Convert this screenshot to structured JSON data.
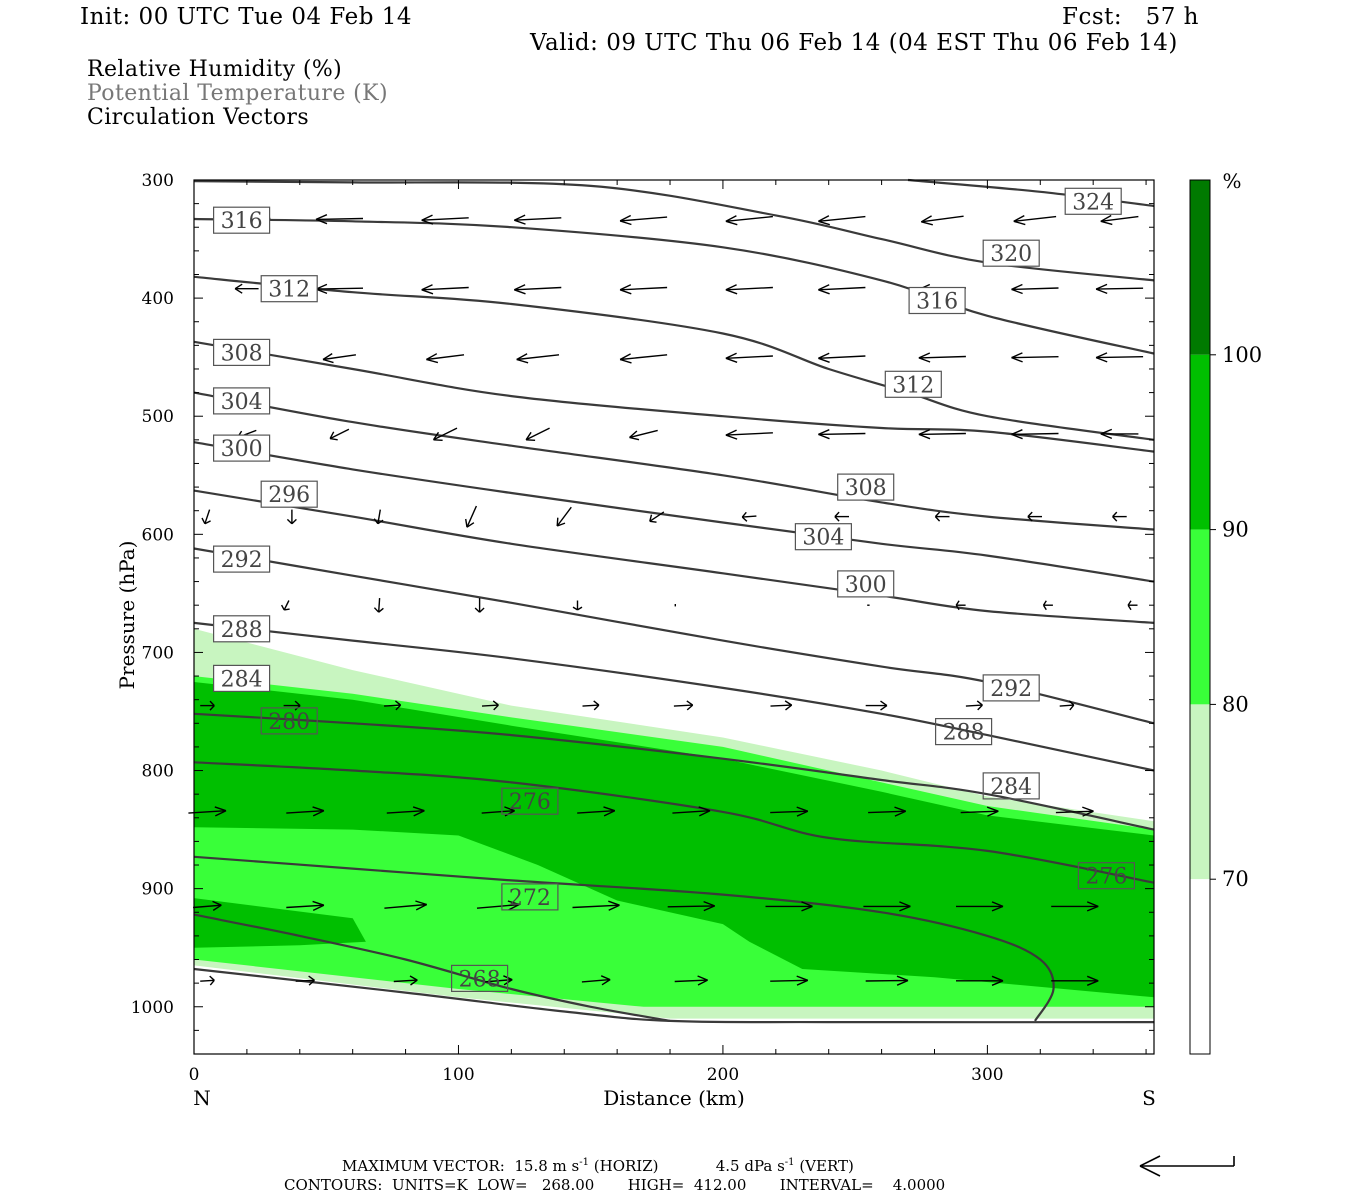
{
  "header": {
    "init": "Init: 00 UTC Tue 04 Feb 14",
    "fcst": "Fcst:   57 h",
    "valid": "Valid: 09 UTC Thu 06 Feb 14 (04 EST Thu 06 Feb 14)"
  },
  "legend": {
    "line1": "Relative Humidity (%)",
    "line2": "Potential Temperature (K)",
    "line3": "Circulation Vectors"
  },
  "footer": {
    "max_vector_label": "MAXIMUM VECTOR:",
    "horiz": "15.8 m s",
    "horiz_unit": "(HORIZ)",
    "vert": "4.5 dPa s",
    "vert_unit": "(VERT)",
    "exp": "-1",
    "contours": "CONTOURS:  UNITS=K  LOW=   268.00       HIGH=  412.00       INTERVAL=    4.0000"
  },
  "colors": {
    "rh70": "#c8f5c0",
    "rh80": "#39ff39",
    "rh90": "#00bf00",
    "rh100": "#007a00",
    "contour": "#3a3a3a",
    "arrow": "#000000"
  },
  "chart_data": {
    "type": "contour",
    "xlabel": "Distance (km)",
    "ylabel": "Pressure (hPa)",
    "xlim": [
      0,
      363
    ],
    "ylim": [
      300,
      1040
    ],
    "x_ticks": [
      "0",
      "100",
      "200",
      "300"
    ],
    "x_tick_values": [
      0,
      100,
      200,
      300
    ],
    "y_ticks": [
      "300",
      "400",
      "500",
      "600",
      "700",
      "800",
      "900",
      "1000"
    ],
    "y_tick_values": [
      300,
      400,
      500,
      600,
      700,
      800,
      900,
      1000
    ],
    "x_end_labels": {
      "left": "N",
      "right": "S"
    },
    "colorbar": {
      "unit": "%",
      "levels": [
        "70",
        "80",
        "90",
        "100"
      ],
      "level_values": [
        70,
        80,
        90,
        100
      ]
    },
    "isentropes": [
      {
        "theta": 268,
        "points": [
          [
            0,
            968
          ],
          [
            80,
            988
          ],
          [
            140,
            1004
          ],
          [
            180,
            1012
          ],
          [
            240,
            1013
          ],
          [
            363,
            1013
          ]
        ]
      },
      {
        "theta": 272,
        "points": [
          [
            0,
            922
          ],
          [
            40,
            940
          ],
          [
            80,
            960
          ],
          [
            120,
            985
          ],
          [
            150,
            1000
          ],
          [
            180,
            1012
          ]
        ]
      },
      {
        "theta": 276,
        "points": [
          [
            0,
            873
          ],
          [
            60,
            883
          ],
          [
            120,
            893
          ],
          [
            200,
            905
          ],
          [
            260,
            920
          ],
          [
            300,
            940
          ],
          [
            320,
            960
          ],
          [
            325,
            985
          ],
          [
            318,
            1012
          ]
        ]
      },
      {
        "theta": 280,
        "points": [
          [
            0,
            793
          ],
          [
            60,
            800
          ],
          [
            120,
            810
          ],
          [
            200,
            835
          ],
          [
            240,
            857
          ],
          [
            300,
            868
          ],
          [
            363,
            895
          ]
        ]
      },
      {
        "theta": 284,
        "points": [
          [
            0,
            752
          ],
          [
            60,
            760
          ],
          [
            120,
            770
          ],
          [
            200,
            790
          ],
          [
            260,
            808
          ],
          [
            300,
            820
          ],
          [
            363,
            850
          ]
        ]
      },
      {
        "theta": 288,
        "points": [
          [
            0,
            675
          ],
          [
            60,
            690
          ],
          [
            120,
            705
          ],
          [
            200,
            730
          ],
          [
            260,
            752
          ],
          [
            300,
            770
          ],
          [
            363,
            800
          ]
        ]
      },
      {
        "theta": 292,
        "points": [
          [
            0,
            612
          ],
          [
            60,
            635
          ],
          [
            120,
            658
          ],
          [
            200,
            690
          ],
          [
            260,
            712
          ],
          [
            300,
            725
          ],
          [
            363,
            760
          ]
        ]
      },
      {
        "theta": 296,
        "points": [
          [
            0,
            563
          ],
          [
            60,
            585
          ],
          [
            120,
            608
          ],
          [
            200,
            633
          ],
          [
            260,
            652
          ],
          [
            300,
            665
          ],
          [
            363,
            675
          ]
        ]
      },
      {
        "theta": 300,
        "points": [
          [
            0,
            522
          ],
          [
            60,
            545
          ],
          [
            120,
            565
          ],
          [
            200,
            590
          ],
          [
            260,
            608
          ],
          [
            300,
            618
          ],
          [
            363,
            640
          ]
        ]
      },
      {
        "theta": 304,
        "points": [
          [
            0,
            480
          ],
          [
            60,
            505
          ],
          [
            120,
            525
          ],
          [
            200,
            550
          ],
          [
            260,
            573
          ],
          [
            300,
            585
          ],
          [
            363,
            596
          ]
        ]
      },
      {
        "theta": 308,
        "points": [
          [
            0,
            437
          ],
          [
            60,
            460
          ],
          [
            120,
            483
          ],
          [
            200,
            500
          ],
          [
            260,
            510
          ],
          [
            300,
            513
          ],
          [
            363,
            530
          ]
        ]
      },
      {
        "theta": 312,
        "points": [
          [
            0,
            382
          ],
          [
            60,
            395
          ],
          [
            120,
            405
          ],
          [
            200,
            430
          ],
          [
            240,
            460
          ],
          [
            270,
            480
          ],
          [
            300,
            500
          ],
          [
            363,
            520
          ]
        ]
      },
      {
        "theta": 316,
        "points": [
          [
            0,
            333
          ],
          [
            60,
            335
          ],
          [
            120,
            340
          ],
          [
            200,
            357
          ],
          [
            260,
            385
          ],
          [
            300,
            415
          ],
          [
            363,
            447
          ]
        ]
      },
      {
        "theta": 320,
        "points": [
          [
            0,
            301
          ],
          [
            60,
            302
          ],
          [
            150,
            305
          ],
          [
            220,
            330
          ],
          [
            260,
            350
          ],
          [
            300,
            370
          ],
          [
            363,
            385
          ]
        ]
      },
      {
        "theta": 324,
        "points": [
          [
            270,
            300
          ],
          [
            320,
            310
          ],
          [
            363,
            322
          ]
        ]
      }
    ],
    "contour_labels": [
      {
        "text": "316",
        "x": 18,
        "p": 334
      },
      {
        "text": "312",
        "x": 36,
        "p": 392
      },
      {
        "text": "308",
        "x": 18,
        "p": 446
      },
      {
        "text": "304",
        "x": 18,
        "p": 487
      },
      {
        "text": "300",
        "x": 18,
        "p": 527
      },
      {
        "text": "296",
        "x": 36,
        "p": 566
      },
      {
        "text": "292",
        "x": 18,
        "p": 621
      },
      {
        "text": "288",
        "x": 18,
        "p": 680
      },
      {
        "text": "284",
        "x": 18,
        "p": 722
      },
      {
        "text": "280",
        "x": 36,
        "p": 758
      },
      {
        "text": "276",
        "x": 127,
        "p": 826
      },
      {
        "text": "272",
        "x": 127,
        "p": 907
      },
      {
        "text": "268",
        "x": 108,
        "p": 976
      },
      {
        "text": "324",
        "x": 340,
        "p": 318
      },
      {
        "text": "320",
        "x": 309,
        "p": 362
      },
      {
        "text": "316",
        "x": 281,
        "p": 402
      },
      {
        "text": "312",
        "x": 272,
        "p": 473
      },
      {
        "text": "308",
        "x": 254,
        "p": 560
      },
      {
        "text": "304",
        "x": 238,
        "p": 602
      },
      {
        "text": "300",
        "x": 254,
        "p": 642
      },
      {
        "text": "292",
        "x": 309,
        "p": 730
      },
      {
        "text": "288",
        "x": 291,
        "p": 767
      },
      {
        "text": "284",
        "x": 309,
        "p": 813
      },
      {
        "text": "276",
        "x": 345,
        "p": 889
      }
    ],
    "rh_fill": {
      "rh70_top": [
        [
          0,
          680
        ],
        [
          60,
          715
        ],
        [
          120,
          745
        ],
        [
          200,
          772
        ],
        [
          260,
          800
        ],
        [
          300,
          822
        ],
        [
          363,
          843
        ]
      ],
      "rh70_bottom": [
        [
          0,
          965
        ],
        [
          100,
          992
        ],
        [
          180,
          1010
        ],
        [
          363,
          1010
        ]
      ],
      "rh80_top": [
        [
          0,
          720
        ],
        [
          60,
          735
        ],
        [
          120,
          755
        ],
        [
          200,
          780
        ],
        [
          260,
          810
        ],
        [
          300,
          830
        ],
        [
          363,
          850
        ]
      ],
      "rh80_bottom": [
        [
          0,
          960
        ],
        [
          100,
          985
        ],
        [
          170,
          1000
        ],
        [
          363,
          1000
        ]
      ],
      "rh90_top": [
        [
          0,
          725
        ],
        [
          60,
          740
        ],
        [
          120,
          762
        ],
        [
          200,
          790
        ],
        [
          260,
          818
        ],
        [
          300,
          838
        ],
        [
          363,
          855
        ]
      ],
      "rh90_bottom_mid": [
        [
          0,
          848
        ],
        [
          60,
          850
        ],
        [
          100,
          855
        ],
        [
          130,
          880
        ],
        [
          160,
          910
        ],
        [
          200,
          930
        ],
        [
          210,
          945
        ],
        [
          230,
          968
        ],
        [
          280,
          975
        ],
        [
          363,
          992
        ]
      ],
      "rh90_lower_patch": [
        [
          0,
          908
        ],
        [
          60,
          925
        ],
        [
          65,
          945
        ],
        [
          40,
          948
        ],
        [
          0,
          950
        ]
      ]
    },
    "vectors": [
      {
        "p": 333,
        "x": [
          20,
          55,
          95,
          130,
          170,
          210,
          245,
          283,
          318,
          350
        ],
        "u": [
          -1.0,
          -1.0,
          -1.0,
          -1.0,
          -1.0,
          -1.0,
          -1.0,
          -0.9,
          -0.9,
          -0.8
        ],
        "w": [
          0.02,
          0.02,
          0.05,
          0.05,
          0.08,
          0.1,
          0.1,
          0.12,
          0.1,
          0.1
        ]
      },
      {
        "p": 392,
        "x": [
          20,
          55,
          95,
          130,
          170,
          210,
          245,
          283,
          318,
          350
        ],
        "u": [
          -0.5,
          -1.0,
          -1.0,
          -1.0,
          -1.0,
          -1.0,
          -1.0,
          -1.0,
          -1.0,
          -1.0
        ],
        "w": [
          0.0,
          0.02,
          0.05,
          0.05,
          0.05,
          0.05,
          0.05,
          0.03,
          0.03,
          0.02
        ]
      },
      {
        "p": 450,
        "x": [
          20,
          55,
          95,
          130,
          170,
          210,
          245,
          283,
          318,
          350
        ],
        "u": [
          -0.5,
          -0.7,
          -0.8,
          -0.9,
          -1.0,
          -1.0,
          -1.0,
          -1.0,
          -1.0,
          -1.0
        ],
        "w": [
          0.05,
          0.1,
          0.1,
          0.1,
          0.1,
          0.05,
          0.05,
          0.03,
          0.02,
          0.02
        ]
      },
      {
        "p": 515,
        "x": [
          20,
          55,
          95,
          130,
          170,
          210,
          245,
          283,
          318,
          350
        ],
        "u": [
          -0.4,
          -0.4,
          -0.5,
          -0.5,
          -0.6,
          -1.0,
          -1.0,
          -1.0,
          -1.0,
          -0.8
        ],
        "w": [
          0.15,
          0.2,
          0.25,
          0.25,
          0.15,
          0.05,
          0.02,
          0.02,
          0.02,
          0.0
        ]
      },
      {
        "p": 585,
        "x": [
          5,
          37,
          70,
          105,
          140,
          175,
          210,
          245,
          283,
          318,
          350
        ],
        "u": [
          -0.1,
          0.0,
          -0.05,
          -0.2,
          -0.3,
          -0.3,
          -0.3,
          -0.3,
          -0.3,
          -0.3,
          -0.3
        ],
        "w": [
          0.3,
          0.3,
          0.3,
          0.45,
          0.4,
          0.2,
          0.02,
          0.0,
          0.0,
          0.0,
          0.0
        ]
      },
      {
        "p": 660,
        "x": [
          35,
          70,
          108,
          145,
          182,
          218,
          255,
          290,
          323,
          355
        ],
        "u": [
          -0.1,
          -0.02,
          0.0,
          0.0,
          0.0,
          0.0,
          0.05,
          -0.2,
          -0.2,
          -0.2
        ],
        "w": [
          0.2,
          0.3,
          0.3,
          0.2,
          0.05,
          0.0,
          0.0,
          0.0,
          0.0,
          0.0
        ]
      },
      {
        "p": 745,
        "x": [
          5,
          37,
          75,
          112,
          150,
          185,
          222,
          258,
          295,
          330
        ],
        "u": [
          0.3,
          0.35,
          0.35,
          0.35,
          0.35,
          0.4,
          0.45,
          0.45,
          0.35,
          0.3
        ],
        "w": [
          0.0,
          0.0,
          -0.02,
          -0.02,
          -0.02,
          -0.02,
          -0.02,
          0.0,
          -0.02,
          -0.02
        ]
      },
      {
        "p": 835,
        "x": [
          5,
          42,
          80,
          115,
          152,
          188,
          225,
          262,
          297,
          333
        ],
        "u": [
          0.8,
          0.8,
          0.8,
          0.7,
          0.8,
          0.8,
          0.8,
          0.8,
          0.8,
          0.8
        ],
        "w": [
          -0.05,
          -0.05,
          -0.05,
          -0.05,
          -0.05,
          -0.05,
          -0.03,
          -0.03,
          -0.03,
          -0.03
        ]
      },
      {
        "p": 915,
        "x": [
          5,
          42,
          80,
          115,
          152,
          188,
          225,
          262,
          297,
          333
        ],
        "u": [
          0.6,
          0.8,
          0.9,
          0.9,
          1.0,
          1.0,
          1.0,
          1.0,
          1.0,
          1.0
        ],
        "w": [
          -0.05,
          -0.05,
          -0.08,
          -0.08,
          -0.05,
          -0.02,
          0.0,
          0.0,
          0.0,
          0.0
        ]
      },
      {
        "p": 978,
        "x": [
          5,
          42,
          80,
          115,
          152,
          188,
          225,
          262,
          297,
          333
        ],
        "u": [
          0.3,
          0.4,
          0.5,
          0.6,
          0.6,
          0.7,
          0.8,
          0.9,
          1.0,
          1.0
        ],
        "w": [
          -0.02,
          -0.02,
          -0.03,
          -0.05,
          -0.05,
          -0.03,
          -0.02,
          -0.01,
          0.0,
          0.0
        ]
      }
    ]
  }
}
